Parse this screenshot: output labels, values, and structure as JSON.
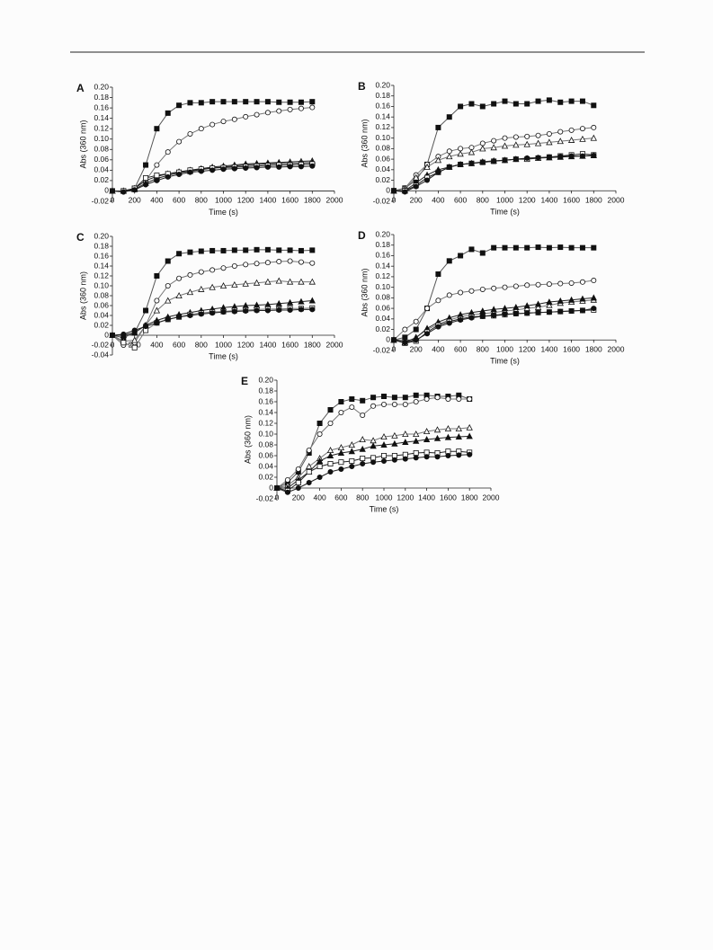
{
  "chart_data": [
    {
      "type": "line",
      "title": "A",
      "x_label": "Time (s)",
      "y_label": "Abs (360 nm)",
      "x": [
        0,
        100,
        200,
        300,
        400,
        500,
        600,
        700,
        800,
        900,
        1000,
        1100,
        1200,
        1300,
        1400,
        1500,
        1600,
        1700,
        1800
      ],
      "xlim": [
        0,
        2000
      ],
      "xticks": [
        0,
        200,
        400,
        600,
        800,
        1000,
        1200,
        1400,
        1600,
        1800,
        2000
      ],
      "ylim": [
        -0.02,
        0.2
      ],
      "yticks": [
        -0.02,
        0,
        0.02,
        0.04,
        0.06,
        0.08,
        {
          "value": 0.1,
          "label": "0.10"
        },
        0.12,
        0.14,
        0.16,
        0.18,
        {
          "value": 0.2,
          "label": "0.20"
        }
      ],
      "series": [
        {
          "marker": "filled-square",
          "color": "#555",
          "values": [
            0,
            0,
            0.005,
            0.05,
            0.12,
            0.15,
            0.165,
            0.17,
            0.17,
            0.172,
            0.172,
            0.172,
            0.172,
            0.172,
            0.172,
            0.171,
            0.171,
            0.171,
            0.172
          ]
        },
        {
          "marker": "open-circle",
          "color": "#777",
          "values": [
            0,
            0,
            0.005,
            0.02,
            0.05,
            0.075,
            0.095,
            0.11,
            0.12,
            0.128,
            0.134,
            0.138,
            0.143,
            0.147,
            0.151,
            0.154,
            0.157,
            0.159,
            0.161
          ]
        },
        {
          "marker": "open-triangle",
          "color": "#222",
          "values": [
            0,
            0,
            0.005,
            0.02,
            0.028,
            0.033,
            0.037,
            0.04,
            0.043,
            0.046,
            0.048,
            0.05,
            0.052,
            0.053,
            0.054,
            0.055,
            0.056,
            0.057,
            0.058
          ]
        },
        {
          "marker": "filled-triangle",
          "color": "#222",
          "values": [
            0,
            0,
            0.003,
            0.015,
            0.024,
            0.03,
            0.035,
            0.038,
            0.041,
            0.044,
            0.046,
            0.048,
            0.05,
            0.051,
            0.052,
            0.053,
            0.053,
            0.054,
            0.055
          ]
        },
        {
          "marker": "open-square",
          "color": "#222",
          "values": [
            0,
            0,
            0.005,
            0.025,
            0.03,
            0.033,
            0.036,
            0.04,
            0.042,
            0.044,
            0.045,
            0.046,
            0.047,
            0.048,
            0.049,
            0.05,
            0.05,
            0.051,
            0.052
          ]
        },
        {
          "marker": "filled-circle",
          "color": "#222",
          "values": [
            0,
            -0.002,
            0.002,
            0.012,
            0.02,
            0.027,
            0.032,
            0.036,
            0.038,
            0.04,
            0.042,
            0.043,
            0.044,
            0.045,
            0.046,
            0.046,
            0.047,
            0.047,
            0.048
          ]
        }
      ]
    },
    {
      "type": "line",
      "title": "B",
      "x_label": "Time (s)",
      "y_label": "Abs (360 nm)",
      "x": [
        0,
        100,
        200,
        300,
        400,
        500,
        600,
        700,
        800,
        900,
        1000,
        1100,
        1200,
        1300,
        1400,
        1500,
        1600,
        1700,
        1800
      ],
      "xlim": [
        0,
        2000
      ],
      "xticks": [
        0,
        200,
        400,
        600,
        800,
        1000,
        1200,
        1400,
        1600,
        1800,
        2000
      ],
      "ylim": [
        -0.02,
        0.2
      ],
      "yticks": [
        -0.02,
        0,
        0.02,
        0.04,
        0.06,
        0.08,
        {
          "value": 0.1,
          "label": "0.10"
        },
        0.12,
        0.14,
        0.16,
        0.18,
        {
          "value": 0.2,
          "label": "0.20"
        }
      ],
      "series": [
        {
          "marker": "filled-square",
          "color": "#555",
          "values": [
            0,
            0.005,
            0.02,
            0.05,
            0.12,
            0.14,
            0.16,
            0.165,
            0.16,
            0.165,
            0.17,
            0.165,
            0.165,
            0.17,
            0.172,
            0.168,
            0.17,
            0.17,
            0.162
          ]
        },
        {
          "marker": "open-circle",
          "color": "#777",
          "values": [
            0,
            0.005,
            0.03,
            0.05,
            0.065,
            0.075,
            0.08,
            0.082,
            0.09,
            0.095,
            0.1,
            0.102,
            0.103,
            0.105,
            0.108,
            0.112,
            0.115,
            0.118,
            0.12
          ]
        },
        {
          "marker": "open-triangle",
          "color": "#777",
          "values": [
            0,
            0.004,
            0.025,
            0.045,
            0.058,
            0.065,
            0.07,
            0.073,
            0.08,
            0.082,
            0.085,
            0.087,
            0.088,
            0.09,
            0.092,
            0.094,
            0.096,
            0.098,
            0.1
          ]
        },
        {
          "marker": "filled-triangle",
          "color": "#222",
          "values": [
            0,
            0,
            0.015,
            0.03,
            0.04,
            0.045,
            0.05,
            0.052,
            0.055,
            0.057,
            0.058,
            0.06,
            0.061,
            0.062,
            0.063,
            0.064,
            0.065,
            0.066,
            0.067
          ]
        },
        {
          "marker": "open-square",
          "color": "#222",
          "values": [
            0,
            0,
            0.01,
            0.025,
            0.035,
            0.045,
            0.05,
            0.052,
            0.054,
            0.056,
            0.058,
            0.06,
            0.06,
            0.062,
            0.064,
            0.066,
            0.068,
            0.07,
            0.068
          ]
        },
        {
          "marker": "filled-circle",
          "color": "#222",
          "values": [
            0,
            -0.002,
            0.008,
            0.02,
            0.035,
            0.045,
            0.05,
            0.052,
            0.054,
            0.056,
            0.058,
            0.06,
            0.062,
            0.063,
            0.064,
            0.065,
            0.066,
            0.066,
            0.067
          ]
        }
      ]
    },
    {
      "type": "line",
      "title": "C",
      "x_label": "Time (s)",
      "y_label": "Abs (360 nm)",
      "x": [
        0,
        100,
        200,
        300,
        400,
        500,
        600,
        700,
        800,
        900,
        1000,
        1100,
        1200,
        1300,
        1400,
        1500,
        1600,
        1700,
        1800
      ],
      "xlim": [
        0,
        2000
      ],
      "xticks": [
        0,
        200,
        400,
        600,
        800,
        1000,
        1200,
        1400,
        1600,
        1800,
        2000
      ],
      "ylim": [
        -0.04,
        0.2
      ],
      "yticks": [
        -0.04,
        -0.02,
        0,
        0.02,
        0.04,
        0.06,
        0.08,
        {
          "value": 0.1,
          "label": "0.10"
        },
        0.12,
        0.14,
        0.16,
        0.18,
        {
          "value": 0.2,
          "label": "0.20"
        }
      ],
      "series": [
        {
          "marker": "filled-square",
          "color": "#555",
          "values": [
            0,
            -0.005,
            0.005,
            0.05,
            0.12,
            0.15,
            0.165,
            0.168,
            0.17,
            0.171,
            0.171,
            0.172,
            0.172,
            0.173,
            0.173,
            0.172,
            0.172,
            0.171,
            0.172
          ]
        },
        {
          "marker": "open-circle",
          "color": "#777",
          "values": [
            0,
            -0.02,
            -0.015,
            0.02,
            0.07,
            0.1,
            0.115,
            0.122,
            0.128,
            0.132,
            0.136,
            0.14,
            0.143,
            0.145,
            0.147,
            0.149,
            0.15,
            0.148,
            0.146
          ]
        },
        {
          "marker": "open-triangle",
          "color": "#777",
          "values": [
            0,
            -0.012,
            -0.01,
            0.02,
            0.05,
            0.07,
            0.08,
            0.087,
            0.093,
            0.097,
            0.1,
            0.102,
            0.104,
            0.106,
            0.108,
            0.11,
            0.108,
            0.108,
            0.108
          ]
        },
        {
          "marker": "filled-triangle",
          "color": "#222",
          "values": [
            0,
            0,
            0.005,
            0.02,
            0.03,
            0.037,
            0.042,
            0.046,
            0.05,
            0.053,
            0.056,
            0.058,
            0.06,
            0.061,
            0.062,
            0.064,
            0.066,
            0.068,
            0.07
          ]
        },
        {
          "marker": "open-square",
          "color": "#777",
          "values": [
            0,
            -0.015,
            -0.025,
            0.01,
            0.025,
            0.032,
            0.037,
            0.042,
            0.045,
            0.047,
            0.048,
            0.05,
            0.051,
            0.052,
            0.053,
            0.053,
            0.054,
            0.054,
            0.055
          ]
        },
        {
          "marker": "filled-circle",
          "color": "#222",
          "values": [
            0,
            0.002,
            0.01,
            0.018,
            0.025,
            0.032,
            0.037,
            0.04,
            0.043,
            0.045,
            0.047,
            0.048,
            0.049,
            0.05,
            0.05,
            0.051,
            0.051,
            0.052,
            0.052
          ]
        }
      ]
    },
    {
      "type": "line",
      "title": "D",
      "x_label": "Time (s)",
      "y_label": "Abs (360 nm)",
      "x": [
        0,
        100,
        200,
        300,
        400,
        500,
        600,
        700,
        800,
        900,
        1000,
        1100,
        1200,
        1300,
        1400,
        1500,
        1600,
        1700,
        1800
      ],
      "xlim": [
        0,
        2000
      ],
      "xticks": [
        0,
        200,
        400,
        600,
        800,
        1000,
        1200,
        1400,
        1600,
        1800,
        2000
      ],
      "ylim": [
        -0.02,
        0.2
      ],
      "yticks": [
        -0.02,
        0,
        0.02,
        0.04,
        0.06,
        0.08,
        {
          "value": 0.1,
          "label": "0.10"
        },
        0.12,
        0.14,
        0.16,
        0.18,
        {
          "value": 0.2,
          "label": "0.20"
        }
      ],
      "series": [
        {
          "marker": "filled-square",
          "color": "#555",
          "values": [
            0,
            0.005,
            0.02,
            0.06,
            0.125,
            0.15,
            0.16,
            0.172,
            0.165,
            0.175,
            0.175,
            0.175,
            0.175,
            0.176,
            0.175,
            0.176,
            0.175,
            0.175,
            0.175
          ]
        },
        {
          "marker": "open-circle",
          "color": "#777",
          "values": [
            0,
            0.02,
            0.035,
            0.06,
            0.075,
            0.085,
            0.09,
            0.093,
            0.096,
            0.098,
            0.1,
            0.102,
            0.104,
            0.105,
            0.106,
            0.107,
            0.108,
            0.11,
            0.113
          ]
        },
        {
          "marker": "open-triangle",
          "color": "#777",
          "values": [
            0,
            -0.005,
            0.005,
            0.02,
            0.03,
            0.038,
            0.044,
            0.048,
            0.05,
            0.052,
            0.055,
            0.057,
            0.06,
            0.062,
            0.066,
            0.07,
            0.072,
            0.074,
            0.076
          ]
        },
        {
          "marker": "filled-triangle",
          "color": "#222",
          "values": [
            0,
            -0.004,
            0.004,
            0.022,
            0.034,
            0.042,
            0.048,
            0.052,
            0.055,
            0.058,
            0.06,
            0.062,
            0.065,
            0.068,
            0.072,
            0.074,
            0.076,
            0.078,
            0.08
          ]
        },
        {
          "marker": "open-square",
          "color": "#222",
          "values": [
            0,
            -0.006,
            -0.002,
            0.015,
            0.028,
            0.035,
            0.04,
            0.044,
            0.045,
            0.046,
            0.048,
            0.05,
            0.051,
            0.052,
            0.053,
            0.054,
            0.055,
            0.056,
            0.057
          ]
        },
        {
          "marker": "filled-circle",
          "color": "#222",
          "values": [
            0,
            -0.005,
            0,
            0.012,
            0.025,
            0.032,
            0.038,
            0.042,
            0.045,
            0.047,
            0.049,
            0.05,
            0.051,
            0.052,
            0.053,
            0.054,
            0.055,
            0.056,
            0.06
          ]
        }
      ]
    },
    {
      "type": "line",
      "title": "E",
      "x_label": "Time (s)",
      "y_label": "Abs (360 nm)",
      "x": [
        0,
        100,
        200,
        300,
        400,
        500,
        600,
        700,
        800,
        900,
        1000,
        1100,
        1200,
        1300,
        1400,
        1500,
        1600,
        1700,
        1800
      ],
      "xlim": [
        0,
        2000
      ],
      "xticks": [
        0,
        200,
        400,
        600,
        800,
        1000,
        1200,
        1400,
        1600,
        1800,
        2000
      ],
      "ylim": [
        -0.02,
        0.2
      ],
      "yticks": [
        -0.02,
        0,
        0.02,
        0.04,
        0.06,
        0.08,
        {
          "value": 0.1,
          "label": "0.10"
        },
        0.12,
        0.14,
        0.16,
        0.18,
        {
          "value": 0.2,
          "label": "0.20"
        }
      ],
      "series": [
        {
          "marker": "filled-square",
          "color": "#555",
          "values": [
            0,
            0.01,
            0.03,
            0.065,
            0.12,
            0.145,
            0.16,
            0.165,
            0.162,
            0.168,
            0.17,
            0.168,
            0.168,
            0.172,
            0.172,
            0.17,
            0.17,
            0.172,
            0.165
          ]
        },
        {
          "marker": "open-circle",
          "color": "#777",
          "values": [
            0,
            0.015,
            0.035,
            0.07,
            0.1,
            0.12,
            0.14,
            0.15,
            0.135,
            0.152,
            0.155,
            0.155,
            0.155,
            0.16,
            0.165,
            0.168,
            0.165,
            0.165,
            0.165
          ]
        },
        {
          "marker": "open-triangle",
          "color": "#777",
          "values": [
            0,
            0.005,
            0.02,
            0.04,
            0.055,
            0.07,
            0.075,
            0.08,
            0.09,
            0.088,
            0.095,
            0.097,
            0.1,
            0.1,
            0.105,
            0.108,
            0.11,
            0.11,
            0.112
          ]
        },
        {
          "marker": "filled-triangle",
          "color": "#222",
          "values": [
            0,
            0,
            0.015,
            0.03,
            0.05,
            0.06,
            0.065,
            0.068,
            0.072,
            0.078,
            0.08,
            0.082,
            0.085,
            0.087,
            0.09,
            0.092,
            0.094,
            0.095,
            0.096
          ]
        },
        {
          "marker": "open-square",
          "color": "#222",
          "values": [
            0,
            -0.005,
            0.01,
            0.03,
            0.04,
            0.045,
            0.048,
            0.05,
            0.055,
            0.056,
            0.06,
            0.06,
            0.062,
            0.065,
            0.066,
            0.065,
            0.068,
            0.068,
            0.066
          ]
        },
        {
          "marker": "filled-circle",
          "color": "#222",
          "values": [
            0,
            -0.008,
            0,
            0.01,
            0.02,
            0.03,
            0.035,
            0.04,
            0.045,
            0.048,
            0.05,
            0.052,
            0.054,
            0.056,
            0.058,
            0.058,
            0.06,
            0.061,
            0.062
          ]
        }
      ]
    }
  ]
}
